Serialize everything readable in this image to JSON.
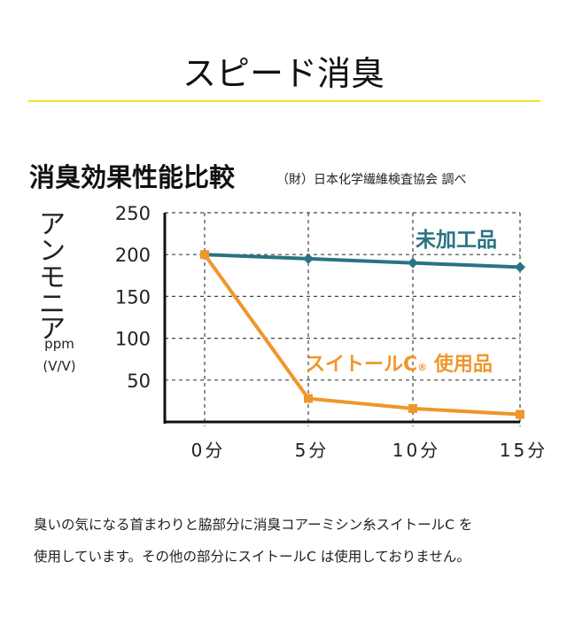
{
  "title": "スピード消臭",
  "subtitle": "消臭効果性能比較",
  "source": "（財）日本化学繊維検査協会 調べ",
  "note_lines": [
    "臭いの気になる首まわりと脇部分に消臭コアーミシン糸スイトールC を",
    "使用しています。その他の部分にスイトールC は使用しておりません。"
  ],
  "chart_data": {
    "type": "line",
    "ylabel": "アンモニア",
    "ylabel_chars": [
      "ア",
      "ン",
      "モ",
      "ニ",
      "ア"
    ],
    "yunit": [
      "ppm",
      "(V/V)"
    ],
    "categories": [
      "0分",
      "5分",
      "10分",
      "15分"
    ],
    "yticks": [
      50,
      100,
      150,
      200,
      250
    ],
    "ylim": [
      0,
      250
    ],
    "grid": true,
    "series": [
      {
        "name": "未加工品",
        "color": "#2a7383",
        "marker": "diamond",
        "values": [
          200,
          195,
          190,
          185
        ]
      },
      {
        "name": "スイトールC® 使用品",
        "label_main": "スイトールC",
        "label_mark": "®",
        "label_tail": " 使用品",
        "color": "#f0962a",
        "marker": "square",
        "values": [
          200,
          28,
          16,
          9
        ]
      }
    ]
  }
}
